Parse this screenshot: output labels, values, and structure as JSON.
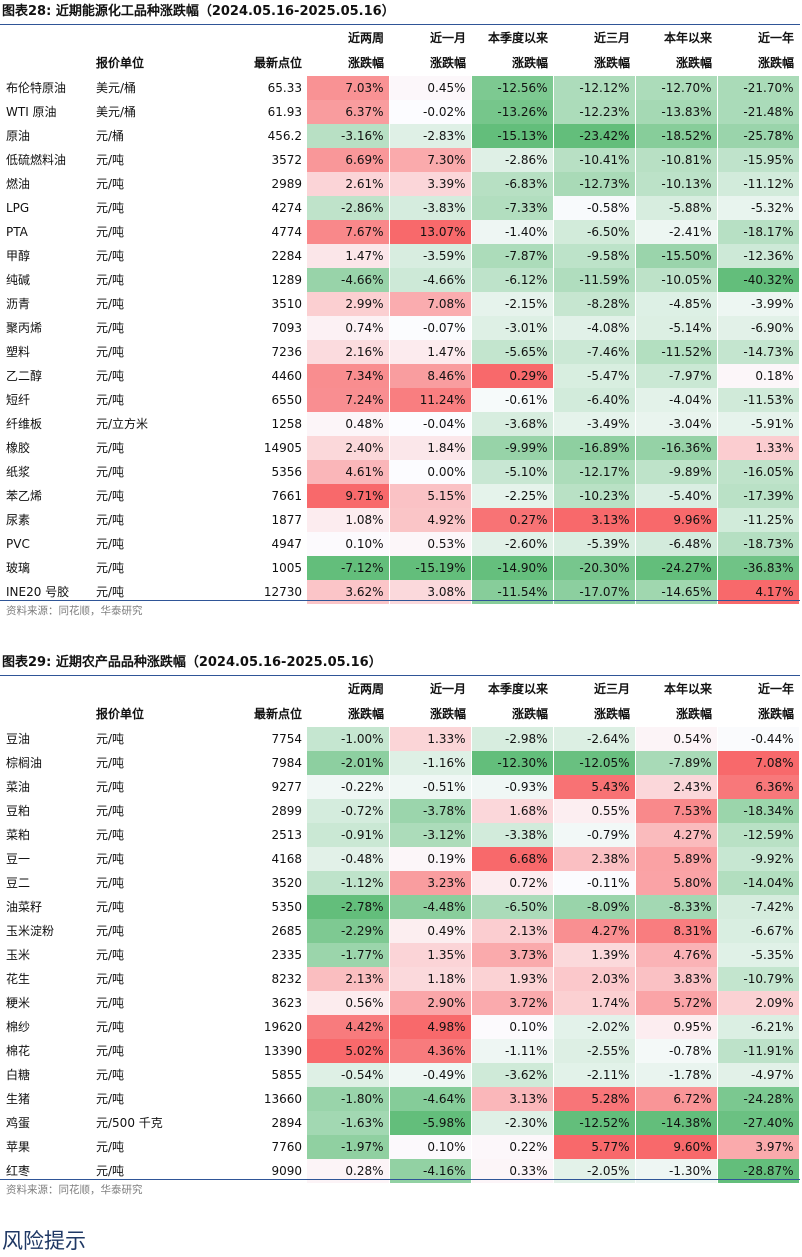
{
  "table1": {
    "title": "图表28:  近期能源化工品种涨跌幅（2024.05.16-2025.05.16）",
    "header_top": [
      "",
      "",
      "",
      "近两周",
      "近一月",
      "本季度以来",
      "近三月",
      "本年以来",
      "近一年"
    ],
    "header_bottom": [
      "",
      "报价单位",
      "最新点位",
      "涨跌幅",
      "涨跌幅",
      "涨跌幅",
      "涨跌幅",
      "涨跌幅",
      "涨跌幅"
    ],
    "rows": [
      [
        "布伦特原油",
        "美元/桶",
        "65.33",
        "7.03%",
        "0.45%",
        "-12.56%",
        "-12.12%",
        "-12.70%",
        "-21.70%"
      ],
      [
        "WTI 原油",
        "美元/桶",
        "61.93",
        "6.37%",
        "-0.02%",
        "-13.26%",
        "-12.23%",
        "-13.83%",
        "-21.48%"
      ],
      [
        "原油",
        "元/桶",
        "456.2",
        "-3.16%",
        "-2.83%",
        "-15.13%",
        "-23.42%",
        "-18.52%",
        "-25.78%"
      ],
      [
        "低硫燃料油",
        "元/吨",
        "3572",
        "6.69%",
        "7.30%",
        "-2.86%",
        "-10.41%",
        "-10.81%",
        "-15.95%"
      ],
      [
        "燃油",
        "元/吨",
        "2989",
        "2.61%",
        "3.39%",
        "-6.83%",
        "-12.73%",
        "-10.13%",
        "-11.12%"
      ],
      [
        "LPG",
        "元/吨",
        "4274",
        "-2.86%",
        "-3.83%",
        "-7.33%",
        "-0.58%",
        "-5.88%",
        "-5.32%"
      ],
      [
        "PTA",
        "元/吨",
        "4774",
        "7.67%",
        "13.07%",
        "-1.40%",
        "-6.50%",
        "-2.41%",
        "-18.17%"
      ],
      [
        "甲醇",
        "元/吨",
        "2284",
        "1.47%",
        "-3.59%",
        "-7.87%",
        "-9.58%",
        "-15.50%",
        "-12.36%"
      ],
      [
        "纯碱",
        "元/吨",
        "1289",
        "-4.66%",
        "-4.66%",
        "-6.12%",
        "-11.59%",
        "-10.05%",
        "-40.32%"
      ],
      [
        "沥青",
        "元/吨",
        "3510",
        "2.99%",
        "7.08%",
        "-2.15%",
        "-8.28%",
        "-4.85%",
        "-3.99%"
      ],
      [
        "聚丙烯",
        "元/吨",
        "7093",
        "0.74%",
        "-0.07%",
        "-3.01%",
        "-4.08%",
        "-5.14%",
        "-6.90%"
      ],
      [
        "塑料",
        "元/吨",
        "7236",
        "2.16%",
        "1.47%",
        "-5.65%",
        "-7.46%",
        "-11.52%",
        "-14.73%"
      ],
      [
        "乙二醇",
        "元/吨",
        "4460",
        "7.34%",
        "8.46%",
        "0.29%",
        "-5.47%",
        "-7.97%",
        "0.18%"
      ],
      [
        "短纤",
        "元/吨",
        "6550",
        "7.24%",
        "11.24%",
        "-0.61%",
        "-6.40%",
        "-4.04%",
        "-11.53%"
      ],
      [
        "纤维板",
        "元/立方米",
        "1258",
        "0.48%",
        "-0.04%",
        "-3.68%",
        "-3.49%",
        "-3.04%",
        "-5.91%"
      ],
      [
        "橡胶",
        "元/吨",
        "14905",
        "2.40%",
        "1.84%",
        "-9.99%",
        "-16.89%",
        "-16.36%",
        "1.33%"
      ],
      [
        "纸浆",
        "元/吨",
        "5356",
        "4.61%",
        "0.00%",
        "-5.10%",
        "-12.17%",
        "-9.89%",
        "-16.05%"
      ],
      [
        "苯乙烯",
        "元/吨",
        "7661",
        "9.71%",
        "5.15%",
        "-2.25%",
        "-10.23%",
        "-5.40%",
        "-17.39%"
      ],
      [
        "尿素",
        "元/吨",
        "1877",
        "1.08%",
        "4.92%",
        "0.27%",
        "3.13%",
        "9.96%",
        "-11.25%"
      ],
      [
        "PVC",
        "元/吨",
        "4947",
        "0.10%",
        "0.53%",
        "-2.60%",
        "-5.39%",
        "-6.48%",
        "-18.73%"
      ],
      [
        "玻璃",
        "元/吨",
        "1005",
        "-7.12%",
        "-15.19%",
        "-14.90%",
        "-20.30%",
        "-24.27%",
        "-36.83%"
      ],
      [
        "INE20 号胶",
        "元/吨",
        "12730",
        "3.62%",
        "3.08%",
        "-11.54%",
        "-17.07%",
        "-14.65%",
        "4.17%"
      ]
    ],
    "source": "资料来源：同花顺，华泰研究"
  },
  "table2": {
    "title": "图表29:  近期农产品品种涨跌幅（2024.05.16-2025.05.16）",
    "header_top": [
      "",
      "",
      "",
      "近两周",
      "近一月",
      "本季度以来",
      "近三月",
      "本年以来",
      "近一年"
    ],
    "header_bottom": [
      "",
      "报价单位",
      "最新点位",
      "涨跌幅",
      "涨跌幅",
      "涨跌幅",
      "涨跌幅",
      "涨跌幅",
      "涨跌幅"
    ],
    "rows": [
      [
        "豆油",
        "元/吨",
        "7754",
        "-1.00%",
        "1.33%",
        "-2.98%",
        "-2.64%",
        "0.54%",
        "-0.44%"
      ],
      [
        "棕榈油",
        "元/吨",
        "7984",
        "-2.01%",
        "-1.16%",
        "-12.30%",
        "-12.05%",
        "-7.89%",
        "7.08%"
      ],
      [
        "菜油",
        "元/吨",
        "9277",
        "-0.22%",
        "-0.51%",
        "-0.93%",
        "5.43%",
        "2.43%",
        "6.36%"
      ],
      [
        "豆粕",
        "元/吨",
        "2899",
        "-0.72%",
        "-3.78%",
        "1.68%",
        "0.55%",
        "7.53%",
        "-18.34%"
      ],
      [
        "菜粕",
        "元/吨",
        "2513",
        "-0.91%",
        "-3.12%",
        "-3.38%",
        "-0.79%",
        "4.27%",
        "-12.59%"
      ],
      [
        "豆一",
        "元/吨",
        "4168",
        "-0.48%",
        "0.19%",
        "6.68%",
        "2.38%",
        "5.89%",
        "-9.92%"
      ],
      [
        "豆二",
        "元/吨",
        "3520",
        "-1.12%",
        "3.23%",
        "0.72%",
        "-0.11%",
        "5.80%",
        "-14.04%"
      ],
      [
        "油菜籽",
        "元/吨",
        "5350",
        "-2.78%",
        "-4.48%",
        "-6.50%",
        "-8.09%",
        "-8.33%",
        "-7.42%"
      ],
      [
        "玉米淀粉",
        "元/吨",
        "2685",
        "-2.29%",
        "0.49%",
        "2.13%",
        "4.27%",
        "8.31%",
        "-6.67%"
      ],
      [
        "玉米",
        "元/吨",
        "2335",
        "-1.77%",
        "1.35%",
        "3.73%",
        "1.39%",
        "4.76%",
        "-5.35%"
      ],
      [
        "花生",
        "元/吨",
        "8232",
        "2.13%",
        "1.18%",
        "1.93%",
        "2.03%",
        "3.83%",
        "-10.79%"
      ],
      [
        "粳米",
        "元/吨",
        "3623",
        "0.56%",
        "2.90%",
        "3.72%",
        "1.74%",
        "5.72%",
        "2.09%"
      ],
      [
        "棉纱",
        "元/吨",
        "19620",
        "4.42%",
        "4.98%",
        "0.10%",
        "-2.02%",
        "0.95%",
        "-6.21%"
      ],
      [
        "棉花",
        "元/吨",
        "13390",
        "5.02%",
        "4.36%",
        "-1.11%",
        "-2.55%",
        "-0.78%",
        "-11.91%"
      ],
      [
        "白糖",
        "元/吨",
        "5855",
        "-0.54%",
        "-0.49%",
        "-3.62%",
        "-2.11%",
        "-1.78%",
        "-4.97%"
      ],
      [
        "生猪",
        "元/吨",
        "13660",
        "-1.80%",
        "-4.64%",
        "3.13%",
        "5.28%",
        "6.72%",
        "-24.28%"
      ],
      [
        "鸡蛋",
        "元/500 千克",
        "2894",
        "-1.63%",
        "-5.98%",
        "-2.30%",
        "-12.52%",
        "-14.38%",
        "-27.40%"
      ],
      [
        "苹果",
        "元/吨",
        "7760",
        "-1.97%",
        "0.10%",
        "0.22%",
        "5.77%",
        "9.60%",
        "3.97%"
      ],
      [
        "红枣",
        "元/吨",
        "9090",
        "0.28%",
        "-4.16%",
        "0.33%",
        "-2.05%",
        "-1.30%",
        "-28.87%"
      ]
    ],
    "source": "资料来源：同花顺，华泰研究"
  },
  "section_heading": "风险提示",
  "colors": {
    "positive": "#f8696b",
    "negative": "#63be7b",
    "neutral": "#fcfcff",
    "rule": "#2f5597"
  }
}
